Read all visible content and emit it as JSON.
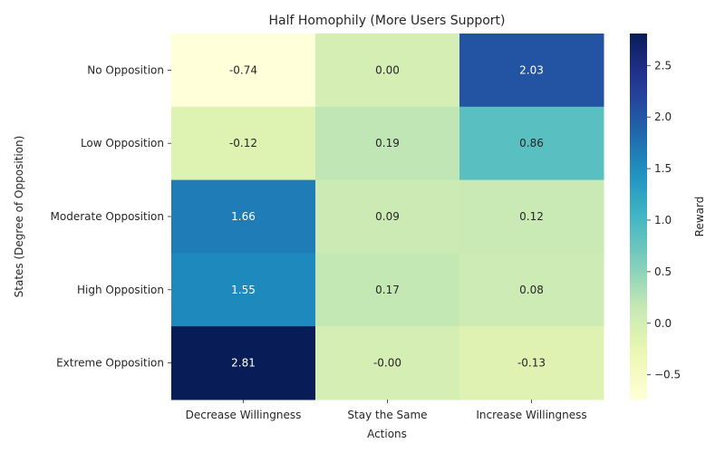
{
  "chart_data": {
    "type": "heatmap",
    "title": "Half Homophily (More Users Support)",
    "xlabel": "Actions",
    "ylabel": "States (Degree of Opposition)",
    "x_categories": [
      "Decrease Willingness",
      "Stay the Same",
      "Increase Willingness"
    ],
    "y_categories": [
      "No Opposition",
      "Low Opposition",
      "Moderate Opposition",
      "High Opposition",
      "Extreme Opposition"
    ],
    "cell_labels": [
      [
        "-0.74",
        "0.00",
        "2.03"
      ],
      [
        "-0.12",
        "0.19",
        "0.86"
      ],
      [
        "1.66",
        "0.09",
        "0.12"
      ],
      [
        "1.55",
        "0.17",
        "0.08"
      ],
      [
        "2.81",
        "-0.00",
        "-0.13"
      ]
    ],
    "values": [
      [
        -0.74,
        0.0,
        2.03
      ],
      [
        -0.12,
        0.19,
        0.86
      ],
      [
        1.66,
        0.09,
        0.12
      ],
      [
        1.55,
        0.17,
        0.08
      ],
      [
        2.81,
        -0.0,
        -0.13
      ]
    ],
    "colorbar": {
      "label": "Reward",
      "vmin": -0.74,
      "vmax": 2.81,
      "ticks": [
        -0.5,
        0.0,
        0.5,
        1.0,
        1.5,
        2.0,
        2.5
      ],
      "tick_labels": [
        "−0.5",
        "0.0",
        "0.5",
        "1.0",
        "1.5",
        "2.0",
        "2.5"
      ],
      "colormap": "YlGnBu"
    }
  }
}
